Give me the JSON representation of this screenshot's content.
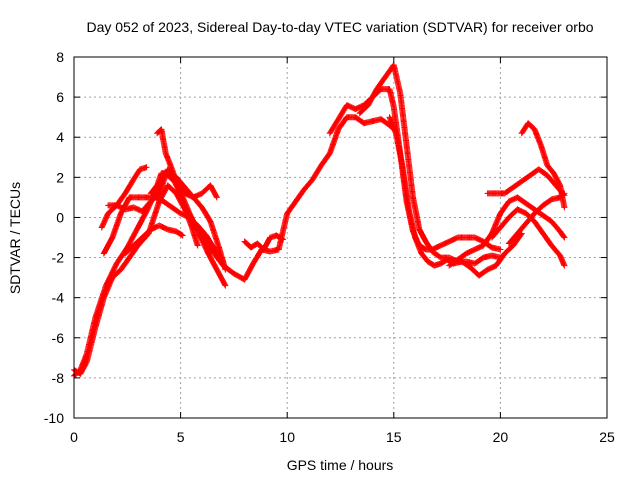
{
  "chart_data": {
    "type": "scatter",
    "title": "Day 052 of 2023, Sidereal Day-to-day VTEC variation (SDTVAR) for receiver orbo",
    "xlabel": "GPS time / hours",
    "ylabel": "SDTVAR / TECUs",
    "xlim": [
      0,
      25
    ],
    "ylim": [
      -10,
      8
    ],
    "xticks": [
      0,
      5,
      10,
      15,
      20,
      25
    ],
    "yticks": [
      -10,
      -8,
      -6,
      -4,
      -2,
      0,
      2,
      4,
      6,
      8
    ],
    "grid": true,
    "marker": "+",
    "color": "#ff0000",
    "series": [
      {
        "name": "trace-1",
        "x": [
          0.0,
          0.3,
          0.6,
          1.0,
          1.4,
          1.8,
          2.2,
          2.6,
          3.0,
          3.5,
          4.0,
          4.4,
          4.8,
          5.1,
          5.5,
          6.0,
          6.5,
          7.0,
          7.5,
          8.0,
          8.4,
          8.8,
          9.2,
          9.6,
          10.0,
          10.4,
          10.8,
          11.2,
          11.6,
          12.0,
          12.4,
          12.8,
          13.2,
          13.6,
          14.0,
          14.4,
          14.8,
          15.1
        ],
        "y": [
          -7.6,
          -7.8,
          -7.2,
          -5.5,
          -4.0,
          -3.0,
          -2.6,
          -2.0,
          -1.4,
          -0.8,
          0.8,
          1.6,
          1.2,
          0.6,
          0.0,
          -1.0,
          -1.7,
          -2.4,
          -2.8,
          -3.1,
          -2.3,
          -1.6,
          -1.7,
          -1.6,
          0.2,
          0.8,
          1.4,
          1.9,
          2.6,
          3.2,
          4.4,
          5.0,
          5.0,
          4.7,
          4.8,
          4.9,
          4.6,
          4.3
        ]
      },
      {
        "name": "trace-2",
        "x": [
          0.0,
          0.3,
          0.6,
          1.0,
          1.5,
          2.0,
          2.5,
          3.0,
          3.4,
          3.8,
          4.3,
          4.7,
          5.1,
          5.5,
          5.9,
          6.3,
          6.7,
          7.1
        ],
        "y": [
          -7.9,
          -7.6,
          -6.8,
          -5.0,
          -3.4,
          -2.3,
          -1.5,
          -0.5,
          0.3,
          1.2,
          2.2,
          1.8,
          1.0,
          0.0,
          -0.9,
          -1.8,
          -2.6,
          -3.4
        ]
      },
      {
        "name": "trace-3",
        "x": [
          1.4,
          1.8,
          2.2,
          2.6,
          3.0,
          3.4,
          3.8,
          4.2,
          4.6,
          5.0,
          5.4,
          5.8,
          6.2,
          6.6,
          7.0
        ],
        "y": [
          -1.8,
          -1.0,
          0.2,
          1.0,
          1.0,
          1.0,
          1.0,
          0.8,
          0.5,
          0.2,
          0.0,
          -0.4,
          -0.9,
          -1.6,
          -2.2
        ]
      },
      {
        "name": "trace-4",
        "x": [
          1.3,
          1.6,
          2.0,
          2.4,
          2.8,
          3.1,
          3.4
        ],
        "y": [
          -0.5,
          0.2,
          0.6,
          1.2,
          1.9,
          2.4,
          2.5
        ]
      },
      {
        "name": "trace-5",
        "x": [
          1.6,
          2.0,
          2.4,
          2.8,
          3.2,
          3.6,
          4.0,
          4.4,
          4.8,
          5.2,
          5.6,
          6.0,
          6.4,
          6.8,
          7.1
        ],
        "y": [
          0.6,
          0.6,
          0.4,
          0.5,
          0.3,
          0.8,
          1.2,
          2.4,
          2.0,
          1.5,
          1.0,
          0.5,
          -0.2,
          -1.5,
          -2.6
        ]
      },
      {
        "name": "trace-6",
        "x": [
          3.6,
          3.9,
          4.1,
          4.4,
          4.8,
          5.2,
          5.6,
          6.0,
          6.4,
          6.7
        ],
        "y": [
          1.2,
          1.6,
          2.2,
          2.2,
          1.8,
          1.2,
          1.0,
          1.2,
          1.6,
          1.0
        ]
      },
      {
        "name": "trace-7",
        "x": [
          2.4,
          2.8,
          3.2,
          3.6,
          4.0,
          4.4,
          4.8,
          5.1
        ],
        "y": [
          -1.8,
          -1.4,
          -1.0,
          -0.6,
          -0.4,
          -0.6,
          -0.7,
          -0.9
        ]
      },
      {
        "name": "trace-8",
        "x": [
          3.9,
          4.1,
          4.3,
          4.6,
          4.9,
          5.2,
          5.5,
          5.8
        ],
        "y": [
          4.2,
          4.4,
          3.2,
          2.4,
          1.4,
          0.4,
          -0.4,
          -1.4
        ]
      },
      {
        "name": "trace-9",
        "x": [
          8.0,
          8.3,
          8.6,
          8.9,
          9.2,
          9.5,
          9.8
        ],
        "y": [
          -1.2,
          -1.5,
          -1.3,
          -1.6,
          -1.0,
          -0.9,
          -1.1
        ]
      },
      {
        "name": "trace-10",
        "x": [
          12.0,
          12.4,
          12.8,
          13.2,
          13.6,
          14.0,
          14.4,
          14.8,
          15.0,
          15.3,
          15.6,
          15.9,
          16.2,
          16.5,
          16.8,
          17.2,
          17.6,
          18.0,
          18.4,
          18.8,
          19.2,
          19.6,
          20.0
        ],
        "y": [
          4.2,
          4.9,
          5.6,
          5.4,
          5.6,
          6.0,
          6.4,
          6.4,
          5.5,
          3.2,
          0.8,
          -0.7,
          -1.4,
          -1.6,
          -1.6,
          -1.4,
          -1.2,
          -1.0,
          -1.0,
          -1.0,
          -1.2,
          -1.5,
          -1.6
        ]
      },
      {
        "name": "trace-11",
        "x": [
          13.4,
          13.8,
          14.2,
          14.6,
          15.0,
          15.3,
          15.6,
          15.9,
          16.2,
          16.5,
          16.8,
          17.2,
          17.6,
          18.0,
          18.4,
          18.8,
          19.2,
          19.6,
          20.0
        ],
        "y": [
          5.2,
          5.6,
          6.4,
          7.0,
          7.6,
          6.2,
          3.6,
          1.0,
          -0.6,
          -1.2,
          -1.7,
          -2.0,
          -2.0,
          -2.2,
          -2.2,
          -2.3,
          -2.0,
          -1.9,
          -2.0
        ]
      },
      {
        "name": "trace-12",
        "x": [
          14.8,
          15.1,
          15.4,
          15.7,
          16.0,
          16.3,
          16.6,
          16.9,
          17.2,
          17.5,
          17.8,
          18.2,
          18.6,
          19.0,
          19.4,
          19.8,
          20.2,
          20.6,
          21.0
        ],
        "y": [
          5.0,
          4.2,
          2.6,
          0.4,
          -1.0,
          -1.8,
          -2.2,
          -2.4,
          -2.3,
          -2.1,
          -2.3,
          -2.2,
          -2.5,
          -2.9,
          -2.6,
          -2.4,
          -1.8,
          -1.4,
          -0.8
        ]
      },
      {
        "name": "trace-13",
        "x": [
          17.6,
          18.0,
          18.4,
          18.8,
          19.2,
          19.6,
          20.0,
          20.4,
          20.8,
          21.2,
          21.6,
          22.0,
          22.4,
          22.8,
          23.0
        ],
        "y": [
          -2.4,
          -2.1,
          -1.8,
          -1.6,
          -1.4,
          -0.8,
          0.2,
          0.8,
          1.0,
          0.7,
          0.4,
          0.1,
          -0.2,
          -0.7,
          -1.0
        ]
      },
      {
        "name": "trace-14",
        "x": [
          19.4,
          19.8,
          20.2,
          20.6,
          21.0,
          21.4,
          21.8,
          22.2,
          22.6,
          23.0
        ],
        "y": [
          1.2,
          1.2,
          1.2,
          1.5,
          1.8,
          2.1,
          2.4,
          2.1,
          1.6,
          1.1
        ]
      },
      {
        "name": "trace-15",
        "x": [
          21.0,
          21.3,
          21.6,
          21.9,
          22.2,
          22.5,
          22.8,
          23.0
        ],
        "y": [
          4.2,
          4.7,
          4.4,
          3.6,
          2.6,
          2.2,
          1.6,
          0.5
        ]
      },
      {
        "name": "trace-16",
        "x": [
          19.6,
          20.0,
          20.4,
          20.8,
          21.2,
          21.6,
          22.0,
          22.4,
          22.8,
          23.0
        ],
        "y": [
          -1.0,
          -0.5,
          0.0,
          0.4,
          0.2,
          -0.2,
          -0.8,
          -1.4,
          -1.9,
          -2.4
        ]
      },
      {
        "name": "trace-17",
        "x": [
          20.4,
          20.8,
          21.2,
          21.6,
          22.0,
          22.4,
          22.8,
          23.0
        ],
        "y": [
          -1.3,
          -0.8,
          -0.3,
          0.2,
          0.6,
          0.9,
          1.0,
          1.2
        ]
      }
    ]
  }
}
